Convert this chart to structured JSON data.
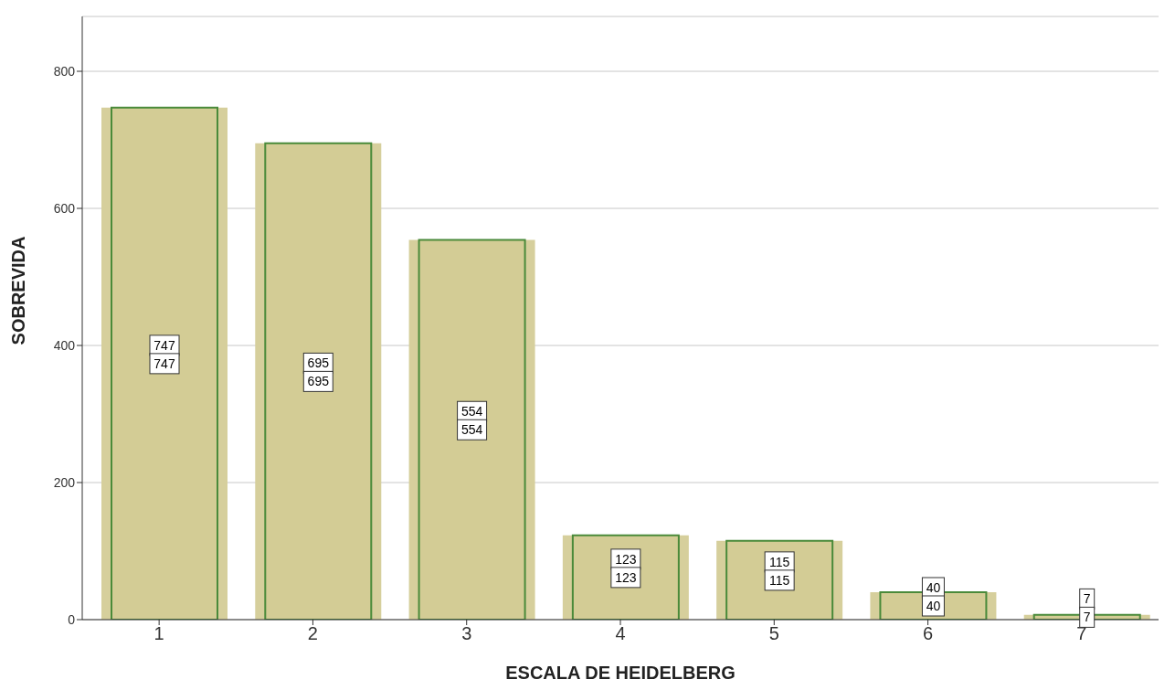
{
  "chart_data": {
    "type": "bar",
    "xlabel": "ESCALA DE HEIDELBERG",
    "ylabel": "SOBREVIDA",
    "categories": [
      "1",
      "2",
      "3",
      "4",
      "5",
      "6",
      "7"
    ],
    "series": [
      {
        "color": "#d6cf9c",
        "values": [
          747,
          695,
          554,
          123,
          115,
          40,
          7
        ]
      },
      {
        "color": "#d3cc95",
        "values": [
          747,
          695,
          554,
          123,
          115,
          40,
          7
        ]
      }
    ],
    "ylim": [
      0,
      880
    ],
    "yticks": [
      0,
      200,
      400,
      600,
      800
    ],
    "grid": "y",
    "data_labels": true,
    "legend": false
  }
}
